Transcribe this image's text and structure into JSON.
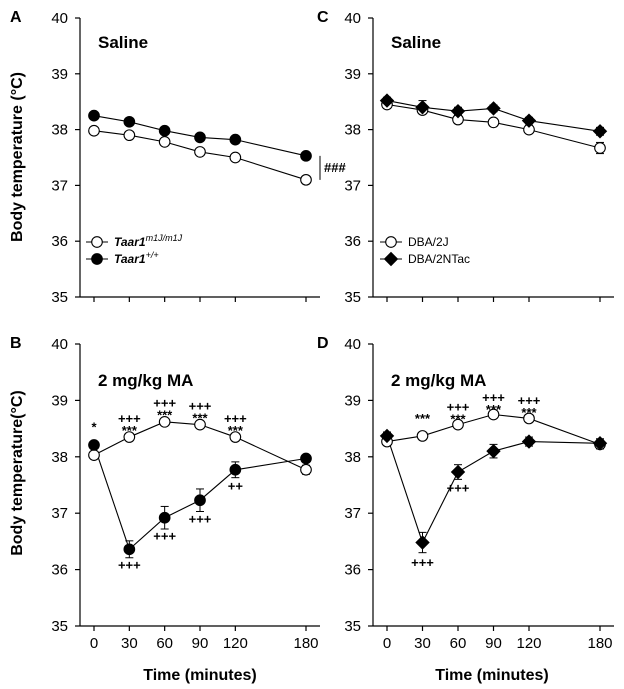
{
  "figure": {
    "ylabel_top": "Body temperature (°C)",
    "ylabel_bottom": "Body temperature(°C)",
    "xlabel": "Time (minutes)"
  },
  "chart_data": [
    {
      "panel": "A",
      "type": "line",
      "title": "Saline",
      "ylim": [
        35,
        40
      ],
      "yticks": [
        "35",
        "36",
        "37",
        "38",
        "39",
        "40"
      ],
      "x": [
        0,
        30,
        60,
        90,
        120,
        180
      ],
      "xticks": [],
      "series": [
        {
          "name": "Taar1",
          "sup": "m1J/m1J",
          "marker": "open-circle",
          "values": [
            37.98,
            37.9,
            37.78,
            37.6,
            37.5,
            37.1
          ],
          "err": [
            0.05,
            0.05,
            0.05,
            0.05,
            0.05,
            0.07
          ]
        },
        {
          "name": "Taar1",
          "sup": "+/+",
          "marker": "filled-circle",
          "values": [
            38.25,
            38.14,
            37.98,
            37.86,
            37.82,
            37.53
          ],
          "err": [
            0.04,
            0.04,
            0.04,
            0.04,
            0.04,
            0.05
          ]
        }
      ],
      "bracket_label": "###",
      "annotations": []
    },
    {
      "panel": "C",
      "type": "line",
      "title": "Saline",
      "ylim": [
        35,
        40
      ],
      "yticks": [
        "35",
        "36",
        "37",
        "38",
        "39",
        "40"
      ],
      "x": [
        0,
        30,
        60,
        90,
        120,
        180
      ],
      "xticks": [],
      "series": [
        {
          "name": "DBA/2J",
          "marker": "open-circle",
          "values": [
            38.45,
            38.35,
            38.18,
            38.13,
            38.0,
            37.67
          ],
          "err": [
            0.07,
            0.07,
            0.07,
            0.07,
            0.07,
            0.1
          ]
        },
        {
          "name": "DBA/2NTac",
          "marker": "filled-diamond",
          "values": [
            38.52,
            38.4,
            38.33,
            38.38,
            38.16,
            37.97
          ],
          "err": [
            0.06,
            0.12,
            0.07,
            0.06,
            0.06,
            0.07
          ]
        }
      ],
      "annotations": []
    },
    {
      "panel": "B",
      "type": "line",
      "title": "2 mg/kg MA",
      "ylim": [
        35,
        40
      ],
      "yticks": [
        "35",
        "36",
        "37",
        "38",
        "39",
        "40"
      ],
      "x": [
        0,
        30,
        60,
        90,
        120,
        180
      ],
      "xticks": [
        "0",
        "30",
        "60",
        "90",
        "120",
        "180"
      ],
      "series": [
        {
          "name": "Taar1 m1J/m1J",
          "marker": "open-circle",
          "values": [
            38.03,
            38.35,
            38.62,
            38.57,
            38.35,
            37.77
          ],
          "err": [
            0.04,
            0.04,
            0.04,
            0.04,
            0.04,
            0.08
          ]
        },
        {
          "name": "Taar1 +/+",
          "marker": "filled-circle",
          "values": [
            38.21,
            36.36,
            36.92,
            37.23,
            37.77,
            37.97
          ],
          "err": [
            0.05,
            0.15,
            0.2,
            0.2,
            0.14,
            0.05
          ]
        }
      ],
      "annotations": [
        {
          "x": 0,
          "y": 38.45,
          "lines": [
            "*"
          ]
        },
        {
          "x": 30,
          "y": 38.6,
          "lines": [
            "+++",
            "***"
          ]
        },
        {
          "x": 60,
          "y": 38.87,
          "lines": [
            "+++",
            "***"
          ]
        },
        {
          "x": 90,
          "y": 38.82,
          "lines": [
            "+++",
            "***"
          ]
        },
        {
          "x": 120,
          "y": 38.6,
          "lines": [
            "+++",
            "***"
          ]
        },
        {
          "x": 30,
          "y": 36.0,
          "lines": [
            "+++"
          ]
        },
        {
          "x": 60,
          "y": 36.52,
          "lines": [
            "+++"
          ]
        },
        {
          "x": 90,
          "y": 36.82,
          "lines": [
            "+++"
          ]
        },
        {
          "x": 120,
          "y": 37.4,
          "lines": [
            "++"
          ]
        }
      ]
    },
    {
      "panel": "D",
      "type": "line",
      "title": "2 mg/kg MA",
      "ylim": [
        35,
        40
      ],
      "yticks": [
        "35",
        "36",
        "37",
        "38",
        "39",
        "40"
      ],
      "x": [
        0,
        30,
        60,
        90,
        120,
        180
      ],
      "xticks": [
        "0",
        "30",
        "60",
        "90",
        "120",
        "180"
      ],
      "series": [
        {
          "name": "DBA/2J",
          "marker": "open-circle",
          "values": [
            38.27,
            38.37,
            38.57,
            38.75,
            38.68,
            38.22
          ],
          "err": [
            0.05,
            0.06,
            0.05,
            0.06,
            0.05,
            0.08
          ]
        },
        {
          "name": "DBA/2NTac",
          "marker": "filled-diamond",
          "values": [
            38.37,
            36.48,
            37.73,
            38.1,
            38.27,
            38.24
          ],
          "err": [
            0.07,
            0.18,
            0.13,
            0.12,
            0.08,
            0.08
          ]
        }
      ],
      "annotations": [
        {
          "x": 30,
          "y": 38.6,
          "lines": [
            "***"
          ]
        },
        {
          "x": 60,
          "y": 38.8,
          "lines": [
            "+++",
            "***"
          ]
        },
        {
          "x": 90,
          "y": 38.97,
          "lines": [
            "+++",
            "***"
          ]
        },
        {
          "x": 120,
          "y": 38.92,
          "lines": [
            "+++",
            "***"
          ]
        },
        {
          "x": 30,
          "y": 36.05,
          "lines": [
            "+++"
          ]
        },
        {
          "x": 60,
          "y": 37.37,
          "lines": [
            "+++"
          ]
        }
      ]
    }
  ]
}
